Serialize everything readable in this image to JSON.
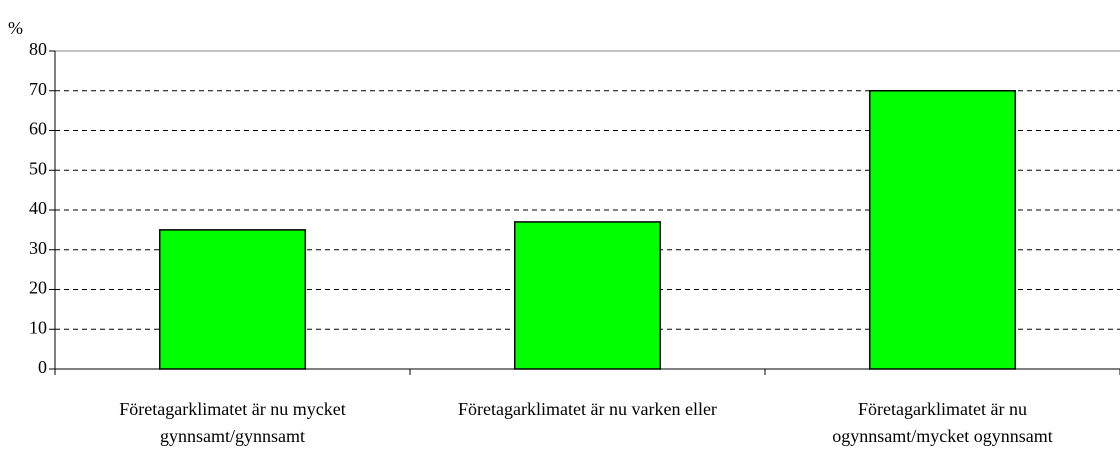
{
  "chart_data": {
    "type": "bar",
    "y_label": "%",
    "categories": [
      "Företagarklimatet är nu mycket gynnsamt/gynnsamt",
      "Företagarklimatet är nu varken eller",
      "Företagarklimatet är nu ogynnsamt/mycket ogynnsamt"
    ],
    "values": [
      35,
      37,
      70
    ],
    "color": "#00ff00",
    "ylim": [
      0,
      80
    ],
    "yticks": [
      0,
      10,
      20,
      30,
      40,
      50,
      60,
      70,
      80
    ],
    "grid": true
  }
}
